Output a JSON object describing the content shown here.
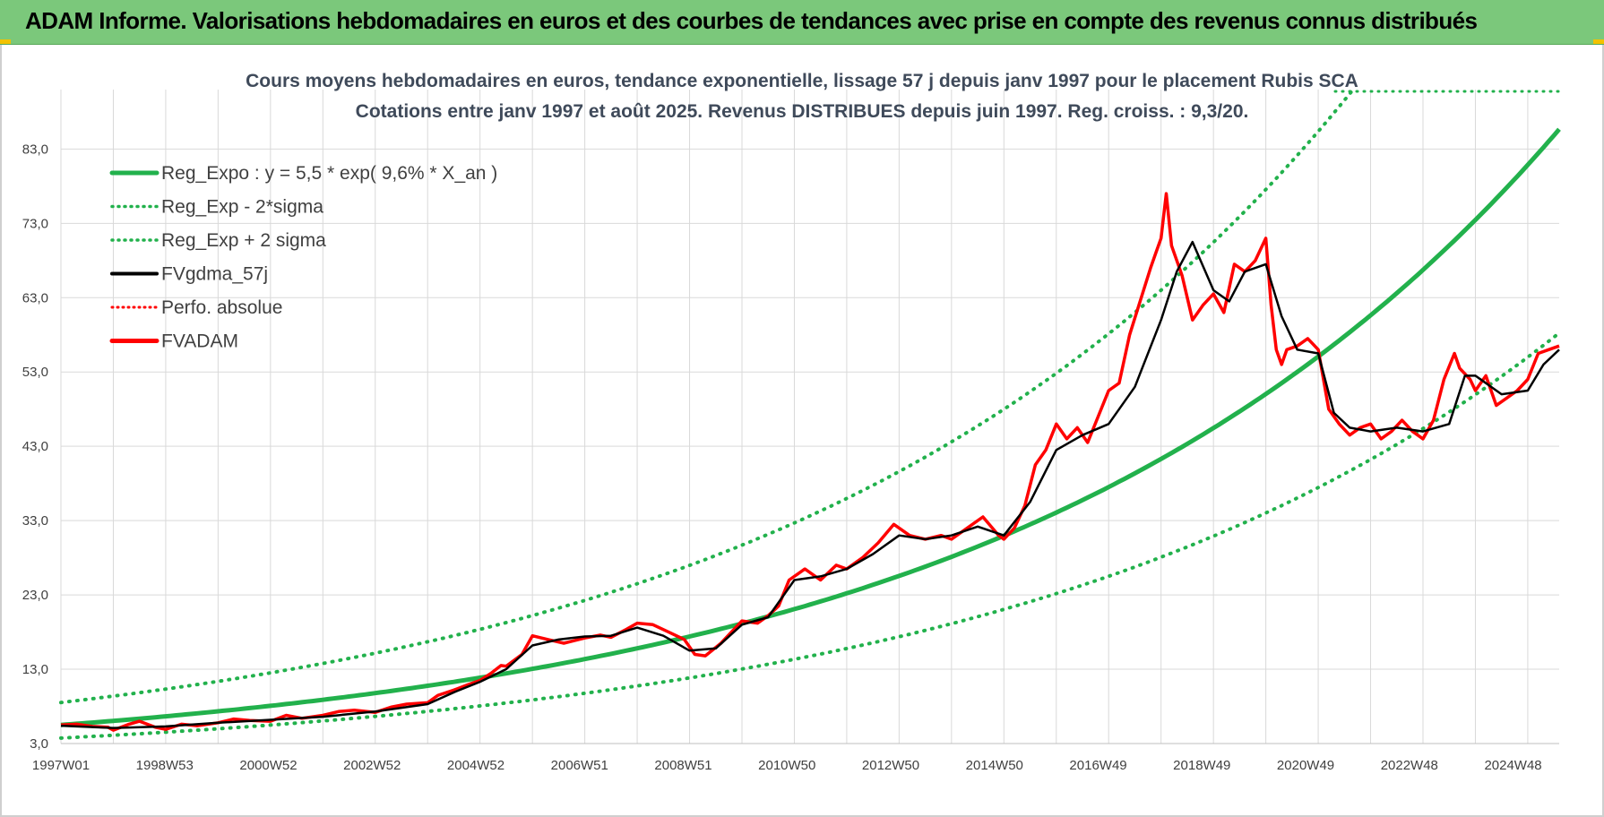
{
  "header": {
    "title": "ADAM Informe. Valorisations hebdomadaires en euros et des courbes de tendances avec prise en compte des revenus connus distribués"
  },
  "colors": {
    "banner": "#7bc87b",
    "regression": "#22b14c",
    "envelope": "#22b14c",
    "smoothed": "#000000",
    "price": "#ff0000",
    "perfo": "#ff0000",
    "grid": "#d9d9d9"
  },
  "chart_data": {
    "type": "line",
    "title_line1": "Cours moyens hebdomadaires en euros, tendance exponentielle, lissage 57 j depuis janv 1997 pour le placement Rubis SCA",
    "title_line2": "Cotations entre janv 1997 et août 2025. Revenus DISTRIBUES depuis juin 1997. Reg. croiss. : 9,3/20.",
    "xlabel": "",
    "ylabel": "",
    "x_range": [
      1997.0,
      2025.6
    ],
    "ylim": [
      3,
      91
    ],
    "y_ticks": [
      "3,0",
      "13,0",
      "23,0",
      "33,0",
      "43,0",
      "53,0",
      "63,0",
      "73,0",
      "83,0"
    ],
    "x_tick_labels": [
      "1997W01",
      "1998W53",
      "2000W52",
      "2002W52",
      "2004W52",
      "2006W51",
      "2008W51",
      "2010W50",
      "2012W50",
      "2014W50",
      "2016W49",
      "2018W49",
      "2020W49",
      "2022W48",
      "2024W48"
    ],
    "grid": true,
    "legend_position": "top-left",
    "legend": [
      "Reg_Expo : y = 5,5 * exp( 9,6% *  X_an )",
      "Reg_Exp - 2*sigma",
      "Reg_Exp + 2 sigma",
      "FVgdma_57j",
      "Perfo. absolue",
      "FVADAM"
    ],
    "regression": {
      "a": 5.5,
      "rate": 0.096,
      "x0": 1997.0
    },
    "series": [
      {
        "name": "FVADAM",
        "x": [
          1997.0,
          1997.3,
          1997.6,
          1997.9,
          1998.0,
          1998.3,
          1998.5,
          1998.8,
          1999.0,
          1999.3,
          1999.6,
          2000.0,
          2000.3,
          2000.6,
          2001.0,
          2001.3,
          2001.6,
          2002.0,
          2002.3,
          2002.6,
          2003.0,
          2003.3,
          2003.6,
          2004.0,
          2004.2,
          2004.5,
          2004.8,
          2005.0,
          2005.2,
          2005.4,
          2005.5,
          2005.8,
          2006.0,
          2006.3,
          2006.6,
          2007.0,
          2007.3,
          2007.5,
          2007.8,
          2008.0,
          2008.3,
          2008.6,
          2008.9,
          2009.1,
          2009.3,
          2009.6,
          2010.0,
          2010.3,
          2010.5,
          2010.7,
          2010.9,
          2011.2,
          2011.5,
          2011.8,
          2012.0,
          2012.3,
          2012.6,
          2012.9,
          2013.2,
          2013.5,
          2013.8,
          2014.0,
          2014.3,
          2014.6,
          2014.9,
          2015.0,
          2015.2,
          2015.4,
          2015.6,
          2015.8,
          2016.0,
          2016.2,
          2016.4,
          2016.6,
          2016.8,
          2017.0,
          2017.2,
          2017.4,
          2017.6,
          2017.8,
          2017.9,
          2018.0,
          2018.1,
          2018.2,
          2018.4,
          2018.6,
          2018.8,
          2019.0,
          2019.2,
          2019.4,
          2019.6,
          2019.8,
          2020.0,
          2020.1,
          2020.2,
          2020.3,
          2020.4,
          2020.6,
          2020.8,
          2021.0,
          2021.2,
          2021.4,
          2021.6,
          2021.8,
          2022.0,
          2022.2,
          2022.4,
          2022.6,
          2022.8,
          2023.0,
          2023.2,
          2023.4,
          2023.6,
          2023.7,
          2023.9,
          2024.0,
          2024.2,
          2024.4,
          2024.6,
          2024.8,
          2025.0,
          2025.2,
          2025.4,
          2025.6
        ],
        "values": [
          5.5,
          5.6,
          5.3,
          5.2,
          4.8,
          5.6,
          6.0,
          5.2,
          4.9,
          5.6,
          5.4,
          5.8,
          6.3,
          6.1,
          6.0,
          6.8,
          6.4,
          6.8,
          7.3,
          7.5,
          7.2,
          7.9,
          8.3,
          8.5,
          9.5,
          10.2,
          11.0,
          11.5,
          12.4,
          13.5,
          13.4,
          15.0,
          17.5,
          17.0,
          16.5,
          17.2,
          17.6,
          17.3,
          18.4,
          19.2,
          19.0,
          18.0,
          17.0,
          15.0,
          14.8,
          16.5,
          19.5,
          19.2,
          20.2,
          21.5,
          25.0,
          26.5,
          25.0,
          27.0,
          26.5,
          28.0,
          30.0,
          32.5,
          31.0,
          30.5,
          31.0,
          30.5,
          32.0,
          33.5,
          31.0,
          30.5,
          32.0,
          35.0,
          40.5,
          42.5,
          46.0,
          44.0,
          45.5,
          43.5,
          47.0,
          50.5,
          51.5,
          58.0,
          62.5,
          67.0,
          69.0,
          71.0,
          77.0,
          70.0,
          66.0,
          60.0,
          62.0,
          63.5,
          61.0,
          67.5,
          66.5,
          68.0,
          71.0,
          62.0,
          56.0,
          54.0,
          56.0,
          56.5,
          57.5,
          56.0,
          48.0,
          46.0,
          44.5,
          45.5,
          46.0,
          44.0,
          45.0,
          46.5,
          45.0,
          44.0,
          46.5,
          52.0,
          55.5,
          53.5,
          52.0,
          50.5,
          52.5,
          48.5,
          49.5,
          50.5,
          52.0,
          55.5,
          56.0,
          56.5
        ]
      },
      {
        "name": "FVgdma_57j",
        "x": [
          1997.0,
          1998.0,
          1999.0,
          2000.0,
          2001.0,
          2002.0,
          2003.0,
          2004.0,
          2004.5,
          2005.0,
          2005.5,
          2006.0,
          2006.5,
          2007.0,
          2007.5,
          2008.0,
          2008.5,
          2009.0,
          2009.5,
          2010.0,
          2010.5,
          2011.0,
          2011.5,
          2012.0,
          2012.5,
          2013.0,
          2013.5,
          2014.0,
          2014.5,
          2015.0,
          2015.5,
          2016.0,
          2016.5,
          2017.0,
          2017.5,
          2018.0,
          2018.3,
          2018.6,
          2019.0,
          2019.3,
          2019.6,
          2020.0,
          2020.3,
          2020.6,
          2021.0,
          2021.3,
          2021.6,
          2022.0,
          2022.5,
          2023.0,
          2023.5,
          2023.8,
          2024.0,
          2024.5,
          2025.0,
          2025.3,
          2025.6
        ],
        "values": [
          5.4,
          5.1,
          5.3,
          5.8,
          6.2,
          6.6,
          7.3,
          8.3,
          9.9,
          11.3,
          13.0,
          16.2,
          17.0,
          17.4,
          17.5,
          18.6,
          17.5,
          15.5,
          15.8,
          19.0,
          20.0,
          25.0,
          25.5,
          26.5,
          28.5,
          31.0,
          30.5,
          31.0,
          32.2,
          31.0,
          35.5,
          42.5,
          44.5,
          46.0,
          51.0,
          60.0,
          66.5,
          70.5,
          64.0,
          62.5,
          66.5,
          67.5,
          60.5,
          56.0,
          55.5,
          47.5,
          45.5,
          45.0,
          45.5,
          45.0,
          46.0,
          52.5,
          52.5,
          50.0,
          50.5,
          54.0,
          56.0
        ]
      }
    ]
  }
}
